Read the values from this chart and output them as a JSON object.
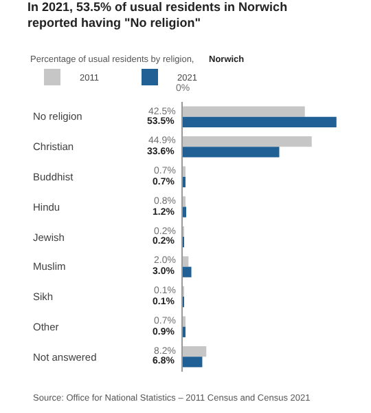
{
  "chart_data": {
    "type": "bar",
    "orientation": "horizontal",
    "title": "In 2021, 53.5% of usual residents in Norwich reported having \"No religion\"",
    "subtitle": "Percentage of usual residents by religion,",
    "annotations": [
      "Norwich",
      "0%",
      "Source: Office for National Statistics – 2011 Census and Census 2021"
    ],
    "categories": [
      "No religion",
      "Christian",
      "Buddhist",
      "Hindu",
      "Jewish",
      "Muslim",
      "Sikh",
      "Other",
      "Not answered"
    ],
    "series": [
      {
        "name": "2011",
        "color": "#c6c6c6",
        "values": [
          42.5,
          44.9,
          0.7,
          0.8,
          0.2,
          2.0,
          0.1,
          0.7,
          8.2
        ],
        "value_labels": [
          "42.5%",
          "44.9%",
          "0.7%",
          "0.8%",
          "0.2%",
          "2.0%",
          "0.1%",
          "0.7%",
          "8.2%"
        ]
      },
      {
        "name": "2021",
        "color": "#206095",
        "values": [
          53.5,
          33.6,
          0.7,
          1.2,
          0.2,
          3.0,
          0.1,
          0.9,
          6.8
        ],
        "value_labels": [
          "53.5%",
          "33.6%",
          "0.7%",
          "1.2%",
          "0.2%",
          "3.0%",
          "0.1%",
          "0.9%",
          "6.8%"
        ]
      }
    ],
    "xlim": [
      0,
      55
    ],
    "legend": "top left"
  }
}
